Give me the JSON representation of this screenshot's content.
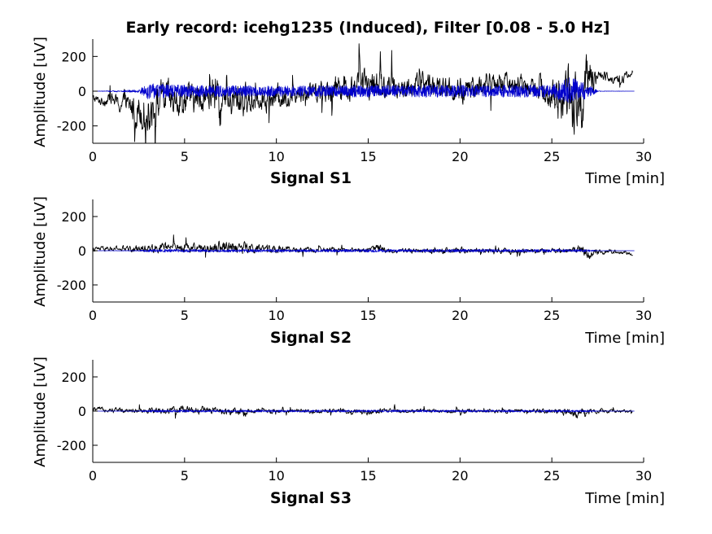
{
  "figure": {
    "title": "Early record: icehg1235 (Induced), Filter [0.08 - 5.0 Hz]"
  },
  "colors": {
    "raw_signal": "#000000",
    "filtered_signal": "#0000cc",
    "axes": "#000000",
    "background": "#ffffff"
  },
  "chart_data": [
    {
      "type": "line",
      "name": "Signal S1",
      "xlabel": "Time [min]",
      "ylabel": "Amplitude [uV]",
      "xlim": [
        0,
        30
      ],
      "ylim": [
        -300,
        300
      ],
      "xticks": [
        "0",
        "5",
        "10",
        "15",
        "20",
        "25",
        "30"
      ],
      "yticks": [
        "-200",
        "0",
        "200"
      ],
      "grid": false,
      "series": [
        {
          "color": "#000000",
          "x": [
            0,
            0.5,
            1,
            1.5,
            2,
            2.5,
            3,
            3.5,
            4,
            4.5,
            5,
            5.5,
            6,
            6.5,
            7,
            7.5,
            8,
            8.5,
            9,
            9.5,
            10,
            10.5,
            11,
            11.5,
            12,
            12.5,
            13,
            13.5,
            14,
            14.5,
            15,
            15.5,
            16,
            16.5,
            17,
            17.5,
            18,
            18.5,
            19,
            19.5,
            20,
            20.5,
            21,
            21.5,
            22,
            22.5,
            23,
            23.5,
            24,
            24.5,
            25,
            25.5,
            26,
            26.5,
            27,
            27.5,
            28,
            28.5,
            29,
            29.4
          ],
          "y": [
            -40,
            -60,
            -40,
            -80,
            -90,
            -100,
            -120,
            -60,
            -40,
            -80,
            -30,
            -50,
            -40,
            -20,
            -90,
            -80,
            -40,
            -60,
            -30,
            -40,
            -30,
            -40,
            -20,
            -10,
            10,
            0,
            20,
            40,
            10,
            60,
            30,
            50,
            20,
            40,
            0,
            30,
            50,
            40,
            10,
            20,
            -40,
            40,
            20,
            50,
            30,
            60,
            40,
            30,
            50,
            20,
            -30,
            -40,
            -20,
            -80,
            80,
            80,
            90,
            60,
            80,
            110
          ],
          "amplitude": [
            25,
            30,
            40,
            60,
            80,
            120,
            140,
            120,
            120,
            100,
            100,
            90,
            90,
            120,
            160,
            110,
            120,
            100,
            80,
            80,
            80,
            70,
            60,
            60,
            70,
            70,
            80,
            90,
            80,
            90,
            90,
            90,
            80,
            80,
            70,
            80,
            80,
            80,
            70,
            70,
            110,
            80,
            70,
            80,
            70,
            70,
            70,
            70,
            70,
            80,
            120,
            180,
            220,
            220,
            140,
            40,
            30,
            30,
            30,
            20
          ]
        },
        {
          "color": "#0000cc",
          "x": [
            0,
            2.5,
            3,
            5,
            10,
            15,
            20,
            25,
            26,
            27,
            27.5,
            29.5
          ],
          "y": [
            0,
            0,
            0,
            0,
            0,
            0,
            0,
            0,
            0,
            0,
            0,
            0
          ],
          "amplitude": [
            0,
            8,
            45,
            35,
            30,
            35,
            35,
            35,
            80,
            40,
            2,
            0
          ]
        }
      ]
    },
    {
      "type": "line",
      "name": "Signal S2",
      "xlabel": "Time [min]",
      "ylabel": "Amplitude [uV]",
      "xlim": [
        0,
        30
      ],
      "ylim": [
        -300,
        300
      ],
      "xticks": [
        "0",
        "5",
        "10",
        "15",
        "20",
        "25",
        "30"
      ],
      "yticks": [
        "-200",
        "0",
        "200"
      ],
      "grid": false,
      "series": [
        {
          "color": "#000000",
          "x": [
            0,
            2,
            3,
            4,
            5,
            6,
            7,
            8,
            9,
            10,
            11,
            12,
            13,
            14,
            15,
            15.5,
            16,
            17,
            18,
            19,
            20,
            21,
            22,
            23,
            24,
            25,
            26,
            26.5,
            27,
            27.5,
            28,
            29,
            29.4
          ],
          "y": [
            10,
            10,
            15,
            20,
            20,
            15,
            30,
            20,
            10,
            10,
            5,
            5,
            5,
            5,
            5,
            20,
            0,
            0,
            0,
            -5,
            0,
            0,
            0,
            -5,
            0,
            0,
            0,
            20,
            -20,
            -10,
            -5,
            -10,
            -20
          ],
          "amplitude": [
            15,
            20,
            25,
            30,
            30,
            25,
            40,
            45,
            25,
            20,
            20,
            15,
            15,
            15,
            15,
            25,
            15,
            15,
            15,
            20,
            20,
            15,
            15,
            15,
            15,
            15,
            20,
            30,
            30,
            20,
            15,
            10,
            8
          ]
        },
        {
          "color": "#0000cc",
          "x": [
            0,
            2.5,
            3,
            10,
            20,
            26,
            27,
            27.5,
            29.5
          ],
          "y": [
            0,
            0,
            0,
            0,
            0,
            0,
            0,
            0,
            0
          ],
          "amplitude": [
            0,
            2,
            8,
            8,
            8,
            8,
            8,
            1,
            0
          ]
        }
      ]
    },
    {
      "type": "line",
      "name": "Signal S3",
      "xlabel": "Time [min]",
      "ylabel": "Amplitude [uV]",
      "xlim": [
        0,
        30
      ],
      "ylim": [
        -300,
        300
      ],
      "xticks": [
        "0",
        "5",
        "10",
        "15",
        "20",
        "25",
        "30"
      ],
      "yticks": [
        "-200",
        "0",
        "200"
      ],
      "grid": false,
      "series": [
        {
          "color": "#000000",
          "x": [
            0,
            1,
            2,
            3,
            4,
            5,
            6,
            7,
            8,
            9,
            10,
            11,
            12,
            13,
            14,
            15,
            16,
            17,
            18,
            19,
            20,
            21,
            22,
            23,
            24,
            25,
            26,
            26.5,
            27,
            27.5,
            28,
            29,
            29.4
          ],
          "y": [
            10,
            10,
            5,
            5,
            0,
            10,
            5,
            0,
            -10,
            0,
            0,
            0,
            0,
            0,
            0,
            -5,
            0,
            0,
            0,
            0,
            0,
            0,
            0,
            0,
            0,
            0,
            -10,
            -20,
            0,
            0,
            0,
            0,
            0
          ],
          "amplitude": [
            15,
            15,
            15,
            20,
            20,
            25,
            25,
            20,
            30,
            15,
            15,
            12,
            12,
            12,
            15,
            20,
            15,
            12,
            12,
            12,
            15,
            12,
            12,
            12,
            12,
            15,
            25,
            30,
            20,
            12,
            12,
            10,
            8
          ]
        },
        {
          "color": "#0000cc",
          "x": [
            0,
            2.5,
            3,
            10,
            20,
            26,
            27,
            27.5,
            29.5
          ],
          "y": [
            0,
            0,
            0,
            0,
            0,
            0,
            0,
            0,
            0
          ],
          "amplitude": [
            0,
            2,
            6,
            6,
            6,
            6,
            6,
            1,
            0
          ]
        }
      ]
    }
  ]
}
